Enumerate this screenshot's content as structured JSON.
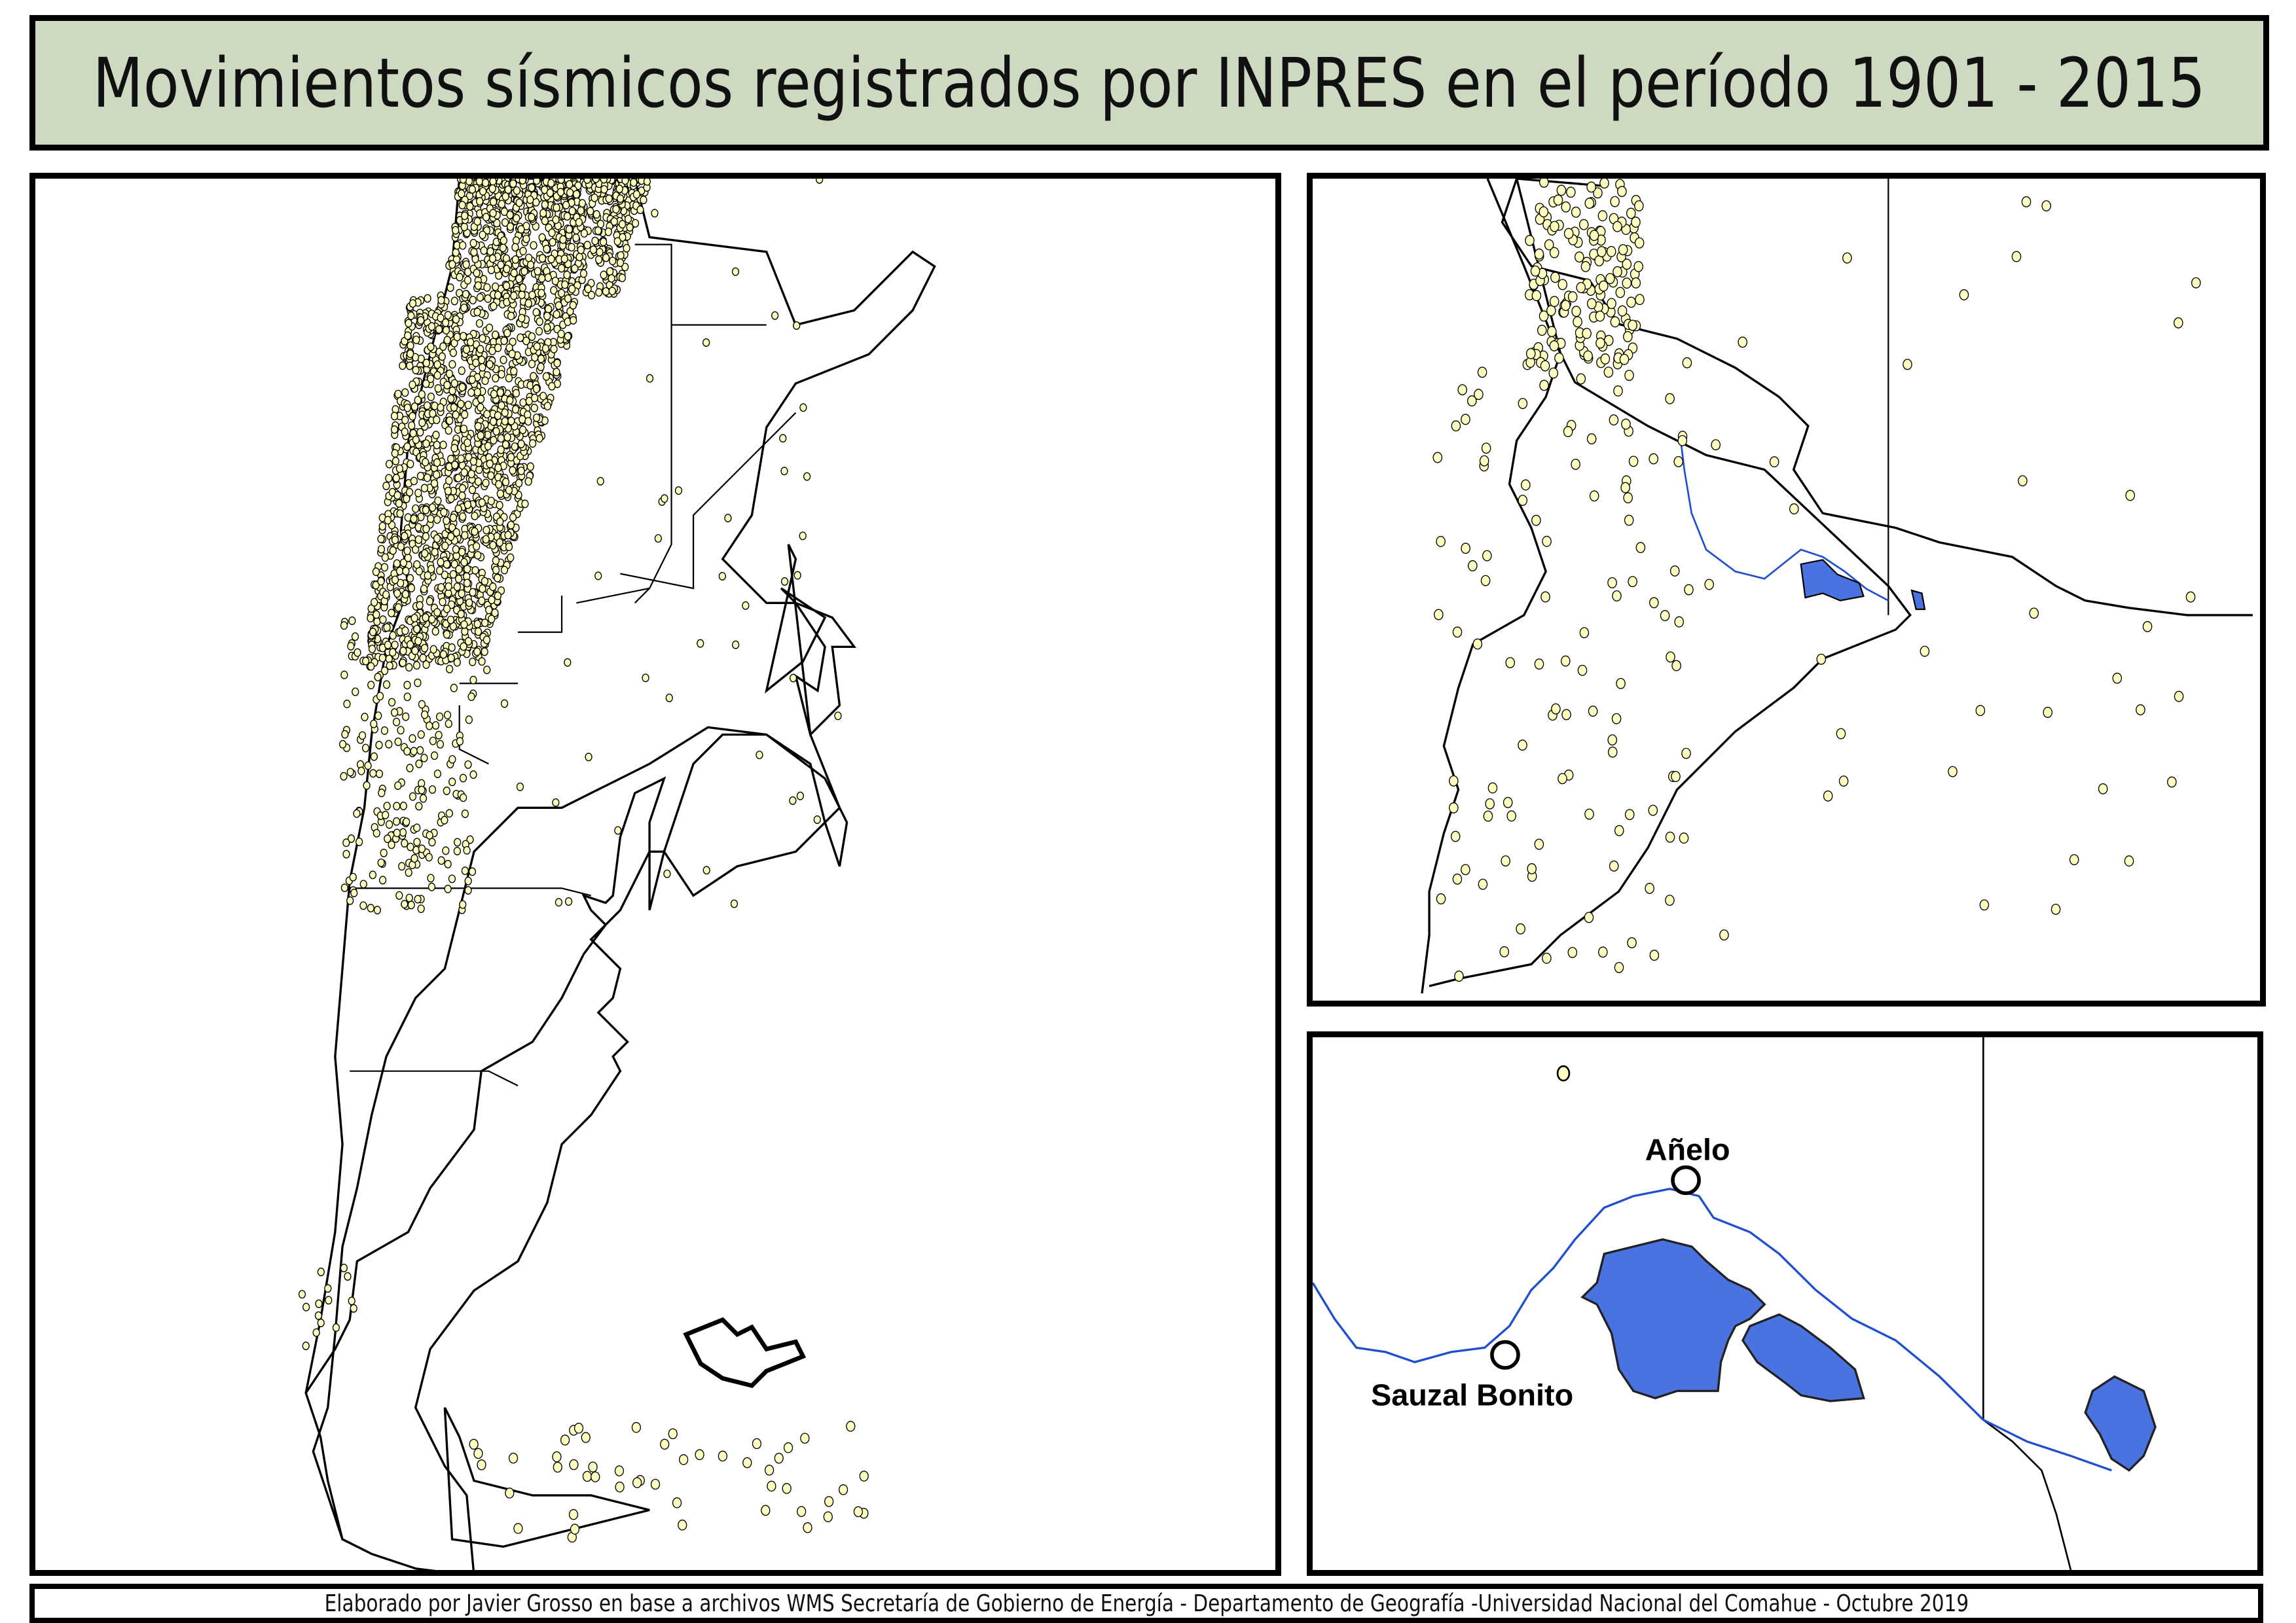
{
  "title": "Movimientos sísmicos registrados por INPRES en el período 1901 - 2015",
  "footer": "Elaborado por Javier Grosso en base a archivos WMS Secretaría de Gobierno de Energía - Departamento de Geografía -Universidad Nacional del Comahue - Octubre 2019",
  "inset": {
    "places": [
      {
        "name": "Añelo"
      },
      {
        "name": "Sauzal Bonito"
      }
    ]
  },
  "colors": {
    "title_bg": "#cdd9c1",
    "epicenter_fill": "#ffffc0",
    "lake_fill": "#4a72e0",
    "river": "#1f4fd0"
  }
}
